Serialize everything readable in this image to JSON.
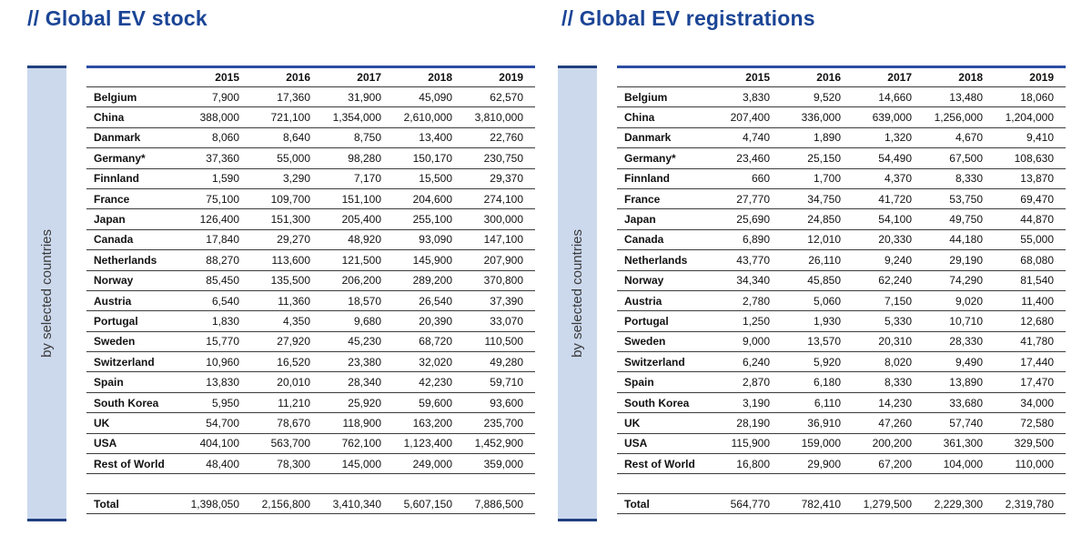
{
  "page": {
    "background": "#ffffff",
    "title_color": "#1b4596",
    "table_top_line_color": "#2b4da3",
    "strip_fill_color": "#ccd9ed",
    "strip_border_color": "#203f7e",
    "row_line_color": "#3c3c3c",
    "text_color": "#121212"
  },
  "tables": [
    {
      "title": "// Global EV stock",
      "side_label": "by selected countries",
      "years": [
        "2015",
        "2016",
        "2017",
        "2018",
        "2019"
      ],
      "rows": [
        {
          "country": "Belgium",
          "values": [
            "7,900",
            "17,360",
            "31,900",
            "45,090",
            "62,570"
          ]
        },
        {
          "country": "China",
          "values": [
            "388,000",
            "721,100",
            "1,354,000",
            "2,610,000",
            "3,810,000"
          ]
        },
        {
          "country": "Danmark",
          "values": [
            "8,060",
            "8,640",
            "8,750",
            "13,400",
            "22,760"
          ]
        },
        {
          "country": "Germany*",
          "values": [
            "37,360",
            "55,000",
            "98,280",
            "150,170",
            "230,750"
          ]
        },
        {
          "country": "Finnland",
          "values": [
            "1,590",
            "3,290",
            "7,170",
            "15,500",
            "29,370"
          ]
        },
        {
          "country": "France",
          "values": [
            "75,100",
            "109,700",
            "151,100",
            "204,600",
            "274,100"
          ]
        },
        {
          "country": "Japan",
          "values": [
            "126,400",
            "151,300",
            "205,400",
            "255,100",
            "300,000"
          ]
        },
        {
          "country": "Canada",
          "values": [
            "17,840",
            "29,270",
            "48,920",
            "93,090",
            "147,100"
          ]
        },
        {
          "country": "Netherlands",
          "values": [
            "88,270",
            "113,600",
            "121,500",
            "145,900",
            "207,900"
          ]
        },
        {
          "country": "Norway",
          "values": [
            "85,450",
            "135,500",
            "206,200",
            "289,200",
            "370,800"
          ]
        },
        {
          "country": "Austria",
          "values": [
            "6,540",
            "11,360",
            "18,570",
            "26,540",
            "37,390"
          ]
        },
        {
          "country": "Portugal",
          "values": [
            "1,830",
            "4,350",
            "9,680",
            "20,390",
            "33,070"
          ]
        },
        {
          "country": "Sweden",
          "values": [
            "15,770",
            "27,920",
            "45,230",
            "68,720",
            "110,500"
          ]
        },
        {
          "country": "Switzerland",
          "values": [
            "10,960",
            "16,520",
            "23,380",
            "32,020",
            "49,280"
          ]
        },
        {
          "country": "Spain",
          "values": [
            "13,830",
            "20,010",
            "28,340",
            "42,230",
            "59,710"
          ]
        },
        {
          "country": "South Korea",
          "values": [
            "5,950",
            "11,210",
            "25,920",
            "59,600",
            "93,600"
          ]
        },
        {
          "country": "UK",
          "values": [
            "54,700",
            "78,670",
            "118,900",
            "163,200",
            "235,700"
          ]
        },
        {
          "country": "USA",
          "values": [
            "404,100",
            "563,700",
            "762,100",
            "1,123,400",
            "1,452,900"
          ]
        },
        {
          "country": "Rest of World",
          "values": [
            "48,400",
            "78,300",
            "145,000",
            "249,000",
            "359,000"
          ]
        }
      ],
      "total": {
        "label": "Total",
        "values": [
          "1,398,050",
          "2,156,800",
          "3,410,340",
          "5,607,150",
          "7,886,500"
        ]
      }
    },
    {
      "title": "// Global EV registrations",
      "side_label": "by selected countries",
      "years": [
        "2015",
        "2016",
        "2017",
        "2018",
        "2019"
      ],
      "rows": [
        {
          "country": "Belgium",
          "values": [
            "3,830",
            "9,520",
            "14,660",
            "13,480",
            "18,060"
          ]
        },
        {
          "country": "China",
          "values": [
            "207,400",
            "336,000",
            "639,000",
            "1,256,000",
            "1,204,000"
          ]
        },
        {
          "country": "Danmark",
          "values": [
            "4,740",
            "1,890",
            "1,320",
            "4,670",
            "9,410"
          ]
        },
        {
          "country": "Germany*",
          "values": [
            "23,460",
            "25,150",
            "54,490",
            "67,500",
            "108,630"
          ]
        },
        {
          "country": "Finnland",
          "values": [
            "660",
            "1,700",
            "4,370",
            "8,330",
            "13,870"
          ]
        },
        {
          "country": "France",
          "values": [
            "27,770",
            "34,750",
            "41,720",
            "53,750",
            "69,470"
          ]
        },
        {
          "country": "Japan",
          "values": [
            "25,690",
            "24,850",
            "54,100",
            "49,750",
            "44,870"
          ]
        },
        {
          "country": "Canada",
          "values": [
            "6,890",
            "12,010",
            "20,330",
            "44,180",
            "55,000"
          ]
        },
        {
          "country": "Netherlands",
          "values": [
            "43,770",
            "26,110",
            "9,240",
            "29,190",
            "68,080"
          ]
        },
        {
          "country": "Norway",
          "values": [
            "34,340",
            "45,850",
            "62,240",
            "74,290",
            "81,540"
          ]
        },
        {
          "country": "Austria",
          "values": [
            "2,780",
            "5,060",
            "7,150",
            "9,020",
            "11,400"
          ]
        },
        {
          "country": "Portugal",
          "values": [
            "1,250",
            "1,930",
            "5,330",
            "10,710",
            "12,680"
          ]
        },
        {
          "country": "Sweden",
          "values": [
            "9,000",
            "13,570",
            "20,310",
            "28,330",
            "41,780"
          ]
        },
        {
          "country": "Switzerland",
          "values": [
            "6,240",
            "5,920",
            "8,020",
            "9,490",
            "17,440"
          ]
        },
        {
          "country": "Spain",
          "values": [
            "2,870",
            "6,180",
            "8,330",
            "13,890",
            "17,470"
          ]
        },
        {
          "country": "South Korea",
          "values": [
            "3,190",
            "6,110",
            "14,230",
            "33,680",
            "34,000"
          ]
        },
        {
          "country": "UK",
          "values": [
            "28,190",
            "36,910",
            "47,260",
            "57,740",
            "72,580"
          ]
        },
        {
          "country": "USA",
          "values": [
            "115,900",
            "159,000",
            "200,200",
            "361,300",
            "329,500"
          ]
        },
        {
          "country": "Rest of World",
          "values": [
            "16,800",
            "29,900",
            "67,200",
            "104,000",
            "110,000"
          ]
        }
      ],
      "total": {
        "label": "Total",
        "values": [
          "564,770",
          "782,410",
          "1,279,500",
          "2,229,300",
          "2,319,780"
        ]
      }
    }
  ]
}
